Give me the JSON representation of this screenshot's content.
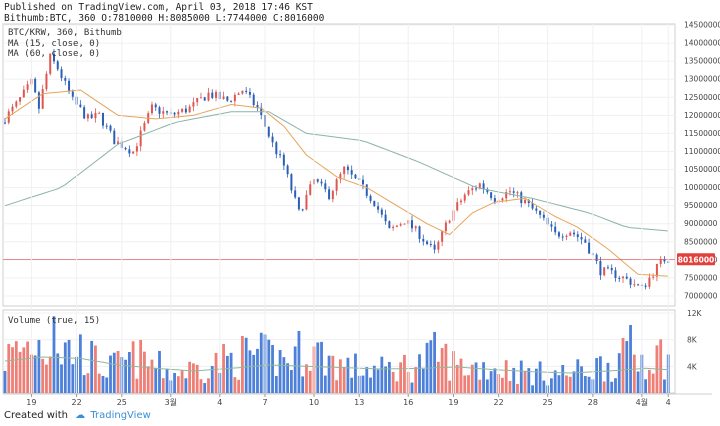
{
  "header": {
    "line1": "Published on TradingView.com, April 03, 2018 17:46 KST",
    "line2": "Bithumb:BTC, 360 O:7810000 H:8085000 L:7744000 C:8016000"
  },
  "legend": {
    "symbol": "BTC/KRW, 360, Bithumb",
    "ma1": "MA (15, close, 0)",
    "ma2": "MA (60, close, 0)"
  },
  "volume_label": "Volume (true, 15)",
  "footer": {
    "created_with": "Created with",
    "brand": "TradingView"
  },
  "colors": {
    "up": "#e0564f",
    "down": "#2a5fb7",
    "ma15": "#e6a55a",
    "ma60": "#8bb3a8",
    "price_line": "#e05050",
    "price_badge": "#e2403c",
    "vol_up": "#ee7f77",
    "vol_down": "#4d80d9",
    "vol_ma": "#8fb99a",
    "grid": "#f0f0f0"
  },
  "chart_data": {
    "type": "candlestick",
    "price_axis": {
      "min": 7000000,
      "max": 14500000,
      "ticks": [
        "14500000",
        "14000000",
        "13500000",
        "13000000",
        "12500000",
        "12000000",
        "11500000",
        "11000000",
        "10500000",
        "10000000",
        "9500000",
        "9000000",
        "8500000",
        "8000000",
        "7500000",
        "7000000"
      ]
    },
    "current_price": "8016000",
    "volume_axis": {
      "min": 0,
      "max": 12000,
      "ticks": [
        "12K",
        "8K",
        "4K"
      ]
    },
    "x_tick_labels": [
      "19",
      "22",
      "25",
      "3월",
      "4",
      "7",
      "10",
      "13",
      "16",
      "19",
      "22",
      "25",
      "28",
      "4월",
      "4"
    ],
    "anchors": [
      [
        0,
        11800000
      ],
      [
        4,
        12300000
      ],
      [
        8,
        12900000
      ],
      [
        10,
        12200000
      ],
      [
        13,
        13600000
      ],
      [
        15,
        13300000
      ],
      [
        19,
        12400000
      ],
      [
        23,
        11900000
      ],
      [
        26,
        12000000
      ],
      [
        30,
        11300000
      ],
      [
        35,
        11000000
      ],
      [
        40,
        12200000
      ],
      [
        45,
        12000000
      ],
      [
        50,
        12200000
      ],
      [
        55,
        12600000
      ],
      [
        60,
        12400000
      ],
      [
        64,
        12700000
      ],
      [
        68,
        12200000
      ],
      [
        72,
        11200000
      ],
      [
        75,
        10600000
      ],
      [
        79,
        9300000
      ],
      [
        83,
        10200000
      ],
      [
        87,
        9800000
      ],
      [
        91,
        10500000
      ],
      [
        95,
        10100000
      ],
      [
        99,
        9600000
      ],
      [
        103,
        8800000
      ],
      [
        107,
        9100000
      ],
      [
        111,
        8700000
      ],
      [
        115,
        8200000
      ],
      [
        119,
        9200000
      ],
      [
        123,
        9800000
      ],
      [
        127,
        10100000
      ],
      [
        131,
        9700000
      ],
      [
        135,
        9900000
      ],
      [
        139,
        9600000
      ],
      [
        143,
        9200000
      ],
      [
        147,
        8700000
      ],
      [
        151,
        8800000
      ],
      [
        155,
        8500000
      ],
      [
        159,
        7700000
      ],
      [
        163,
        7600000
      ],
      [
        167,
        7400000
      ],
      [
        170,
        7200000
      ],
      [
        174,
        7800000
      ],
      [
        176,
        8016000
      ]
    ],
    "ma15_anchors": [
      [
        0,
        11900000
      ],
      [
        10,
        12600000
      ],
      [
        20,
        12700000
      ],
      [
        30,
        12000000
      ],
      [
        40,
        11900000
      ],
      [
        50,
        12000000
      ],
      [
        60,
        12300000
      ],
      [
        68,
        12200000
      ],
      [
        74,
        11700000
      ],
      [
        80,
        10900000
      ],
      [
        88,
        10300000
      ],
      [
        96,
        10000000
      ],
      [
        104,
        9500000
      ],
      [
        112,
        9000000
      ],
      [
        118,
        8700000
      ],
      [
        124,
        9300000
      ],
      [
        130,
        9600000
      ],
      [
        138,
        9700000
      ],
      [
        146,
        9200000
      ],
      [
        152,
        8900000
      ],
      [
        160,
        8300000
      ],
      [
        168,
        7600000
      ],
      [
        176,
        7550000
      ]
    ],
    "ma60_anchors": [
      [
        0,
        9500000
      ],
      [
        15,
        10000000
      ],
      [
        30,
        11200000
      ],
      [
        45,
        11800000
      ],
      [
        60,
        12100000
      ],
      [
        70,
        12100000
      ],
      [
        80,
        11500000
      ],
      [
        95,
        11300000
      ],
      [
        110,
        10700000
      ],
      [
        125,
        10000000
      ],
      [
        140,
        9700000
      ],
      [
        155,
        9300000
      ],
      [
        165,
        8900000
      ],
      [
        176,
        8800000
      ]
    ],
    "volume_anchors": [
      [
        0,
        5400
      ],
      [
        8,
        7800
      ],
      [
        13,
        6800
      ],
      [
        20,
        6400
      ],
      [
        27,
        3600
      ],
      [
        35,
        5400
      ],
      [
        45,
        3000
      ],
      [
        55,
        4400
      ],
      [
        65,
        6000
      ],
      [
        75,
        5000
      ],
      [
        80,
        7000
      ],
      [
        90,
        4000
      ],
      [
        100,
        3500
      ],
      [
        110,
        4500
      ],
      [
        115,
        6200
      ],
      [
        120,
        4000
      ],
      [
        130,
        4000
      ],
      [
        140,
        3000
      ],
      [
        150,
        3000
      ],
      [
        160,
        4500
      ],
      [
        166,
        5500
      ],
      [
        176,
        5800
      ]
    ],
    "volume_ma_anchors": [
      [
        0,
        4800
      ],
      [
        10,
        5400
      ],
      [
        20,
        5200
      ],
      [
        30,
        4200
      ],
      [
        40,
        3700
      ],
      [
        50,
        3300
      ],
      [
        60,
        3700
      ],
      [
        70,
        4200
      ],
      [
        80,
        4000
      ],
      [
        90,
        3800
      ],
      [
        100,
        3600
      ],
      [
        110,
        3700
      ],
      [
        120,
        3900
      ],
      [
        130,
        3500
      ],
      [
        140,
        3200
      ],
      [
        150,
        3000
      ],
      [
        160,
        3300
      ],
      [
        170,
        3700
      ],
      [
        176,
        3500
      ]
    ]
  }
}
